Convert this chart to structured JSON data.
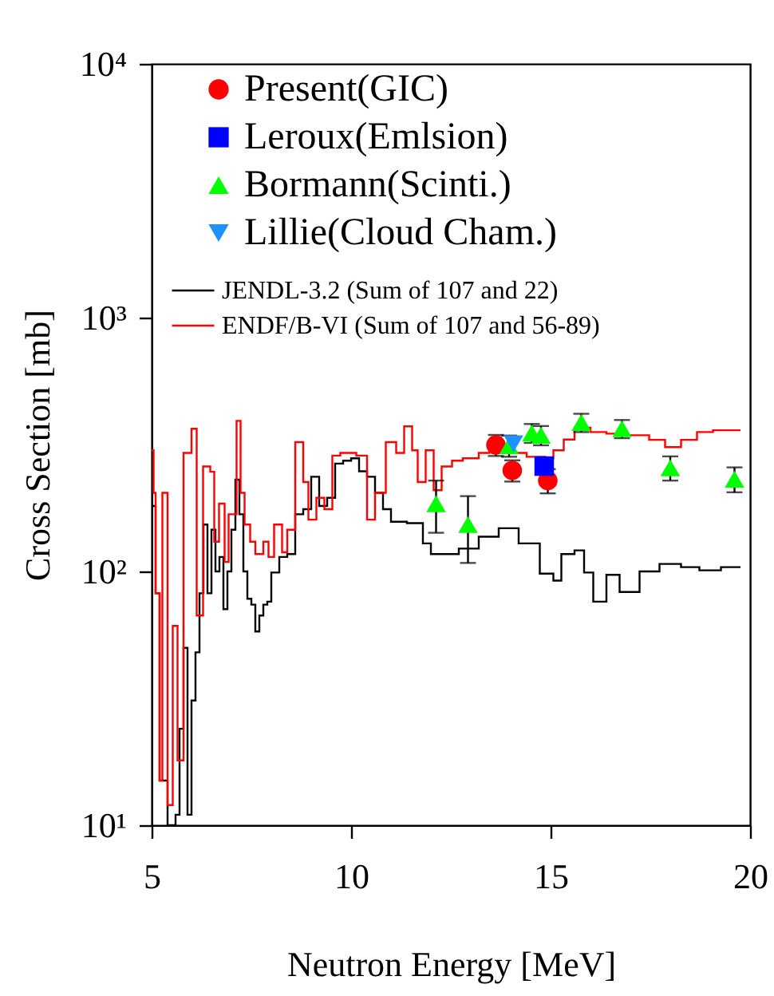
{
  "chart_data": {
    "type": "scatter",
    "xlabel": "Neutron Energy [MeV]",
    "ylabel": "Cross Section [mb]",
    "log": "y",
    "grid": false,
    "legend": "top left",
    "xlim": [
      5,
      20
    ],
    "xticks": [
      5,
      10,
      15,
      20
    ],
    "ylim": [
      10,
      10000
    ],
    "yticks": [
      {
        "value": 10,
        "label": "10¹"
      },
      {
        "value": 100,
        "label": "10²"
      },
      {
        "value": 1000,
        "label": "10³"
      },
      {
        "value": 10000,
        "label": "10⁴"
      }
    ],
    "series": [
      {
        "name": "JENDL-3.2 (Sum of 107 and 22)",
        "type": "step",
        "color": "#000000",
        "x": [
          5.0,
          5.1,
          5.2,
          5.4,
          5.6,
          5.7,
          5.8,
          5.9,
          6.0,
          6.1,
          6.2,
          6.3,
          6.4,
          6.5,
          6.6,
          6.7,
          6.8,
          6.9,
          7.0,
          7.1,
          7.2,
          7.3,
          7.4,
          7.5,
          7.6,
          7.7,
          7.8,
          7.9,
          8.0,
          8.2,
          8.4,
          8.6,
          8.8,
          9.0,
          9.2,
          9.4,
          9.6,
          9.8,
          10.0,
          10.2,
          10.4,
          10.6,
          10.8,
          11.0,
          11.4,
          11.8,
          12.0,
          12.4,
          12.7,
          13.2,
          13.7,
          14.2,
          14.73,
          15.07,
          15.27,
          15.6,
          15.84,
          16.07,
          16.4,
          16.73,
          17.23,
          17.73,
          18.27,
          18.73,
          19.27,
          19.76
        ],
        "values": [
          181,
          82,
          15,
          10,
          11,
          24,
          50,
          11,
          31,
          48,
          82,
          153,
          82,
          146,
          100,
          114,
          71,
          100,
          146,
          230,
          168,
          100,
          78,
          74,
          58,
          67,
          74,
          76,
          99,
          114,
          117,
          168,
          176,
          236,
          181,
          195,
          266,
          273,
          279,
          248,
          236,
          204,
          176,
          157,
          155,
          129,
          117,
          117,
          123,
          137,
          148,
          129,
          98,
          92,
          117,
          121,
          99,
          76,
          97,
          83,
          100,
          107,
          104,
          101,
          104,
          104
        ]
      },
      {
        "name": "ENDF/B-VI (Sum of 107 and 56-89)",
        "type": "step",
        "color": "#ff0000",
        "x": [
          5.0,
          5.05,
          5.1,
          5.2,
          5.27,
          5.4,
          5.53,
          5.65,
          5.8,
          6.0,
          6.13,
          6.29,
          6.47,
          6.57,
          6.69,
          6.83,
          6.93,
          7.13,
          7.23,
          7.33,
          7.47,
          7.6,
          7.8,
          7.93,
          8.07,
          8.27,
          8.4,
          8.6,
          8.8,
          8.93,
          9.13,
          9.33,
          9.53,
          9.73,
          10.13,
          10.4,
          10.6,
          10.87,
          11.13,
          11.33,
          11.53,
          11.67,
          11.87,
          12.07,
          12.27,
          12.53,
          12.8,
          13.2,
          13.47,
          14.0,
          14.4,
          14.87,
          15.07,
          15.33,
          15.6,
          16.0,
          16.4,
          16.93,
          17.47,
          17.87,
          18.27,
          18.67,
          19.07,
          19.76
        ],
        "values": [
          300,
          204,
          82,
          15,
          204,
          12,
          61,
          18,
          293,
          365,
          67,
          259,
          247,
          131,
          185,
          109,
          168,
          392,
          204,
          153,
          131,
          117,
          131,
          114,
          153,
          119,
          146,
          323,
          225,
          160,
          195,
          176,
          286,
          293,
          286,
          160,
          204,
          323,
          293,
          373,
          300,
          225,
          300,
          209,
          259,
          273,
          279,
          293,
          315,
          293,
          283,
          279,
          300,
          331,
          368,
          354,
          349,
          344,
          330,
          309,
          330,
          354,
          360,
          360
        ]
      },
      {
        "name": "Present(GIC)",
        "type": "scatter",
        "marker": "circle",
        "color": "#ff0000",
        "x": [
          13.63,
          14.04,
          14.93
        ],
        "values": [
          315,
          250,
          228
        ],
        "errors": [
          30,
          24,
          25
        ]
      },
      {
        "name": "Leroux(Emlsion)",
        "type": "scatter",
        "marker": "square",
        "color": "#0000ff",
        "x": [
          14.84
        ],
        "values": [
          260
        ]
      },
      {
        "name": "Bormann(Scinti.)",
        "type": "scatter",
        "marker": "triangle",
        "color": "#00ff00",
        "x": [
          12.13,
          12.93,
          13.96,
          14.53,
          14.76,
          15.77,
          16.79,
          18.0,
          19.61
        ],
        "values": [
          185,
          153,
          313,
          351,
          344,
          386,
          365,
          256,
          231
        ],
        "errors": [
          43,
          45,
          30,
          30,
          30,
          32,
          30,
          28,
          26
        ]
      },
      {
        "name": "Lillie(Cloud Cham.)",
        "type": "scatter",
        "marker": "triangle-down",
        "color": "#1e90ff",
        "x": [
          14.07
        ],
        "values": [
          318
        ]
      }
    ]
  }
}
